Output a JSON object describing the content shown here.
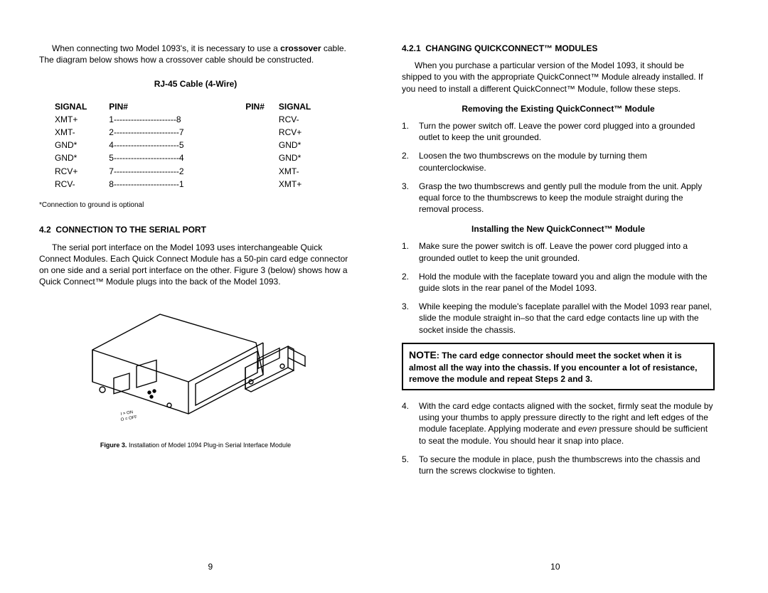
{
  "left": {
    "intro_p1a": "When connecting two Model 1093's, it is necessary to use a",
    "intro_p1b": "crossover",
    "intro_p1c": " cable.  The diagram below shows how a crossover cable should be constructed.",
    "table_title": "RJ-45 Cable (4-Wire)",
    "table": {
      "headers": [
        "SIGNAL",
        "PIN#",
        "PIN#",
        "SIGNAL"
      ],
      "rows": [
        [
          "XMT+",
          "1",
          "----------------------",
          "8",
          "RCV-"
        ],
        [
          "XMT-",
          "2",
          "-----------------------",
          "7",
          "RCV+"
        ],
        [
          "GND*",
          "4",
          "-----------------------",
          "5",
          "GND*"
        ],
        [
          "GND*",
          "5",
          "-----------------------",
          "4",
          "GND*"
        ],
        [
          "RCV+",
          "7",
          "-----------------------",
          "2",
          "XMT-"
        ],
        [
          "RCV-",
          "8",
          "-----------------------",
          "1",
          "XMT+"
        ]
      ]
    },
    "footnote": "*Connection to ground is optional",
    "h42_num": "4.2",
    "h42_title": "CONNECTION TO THE SERIAL PORT",
    "p42": "The serial port interface on the Model 1093 uses interchangeable Quick Connect Modules.  Each Quick Connect Module has a 50-pin card edge connector on one side and a serial port interface on the other.  Figure 3 (below) shows how a Quick Connect™ Module plugs into the back of the Model 1093.",
    "fig_caption_bold": "Figure 3.",
    "fig_caption_rest": "  Installation of Model 1094 Plug-in Serial Interface Module",
    "page_num": "9"
  },
  "right": {
    "h421_num": "4.2.1",
    "h421_title": "CHANGING QUICKCONNECT™ MODULES",
    "p421": "When you purchase a particular version of the Model 1093, it should be shipped to you with the appropriate QuickConnect™ Module already installed.  If you need to install a different QuickConnect™ Module, follow these steps.",
    "remove_title": "Removing the Existing QuickConnect™ Module",
    "remove_steps": [
      "Turn the power switch off.  Leave the power cord plugged into a grounded outlet to keep the unit grounded.",
      "Loosen the two thumbscrews on the module by turning them counterclockwise.",
      "Grasp the two thumbscrews and gently pull the module from the unit.  Apply equal force to the thumbscrews to keep the module straight during the removal process."
    ],
    "install_title": "Installing the New QuickConnect™ Module",
    "install_steps_1_3": [
      "Make sure the power switch is off.  Leave the power cord plugged into a grounded outlet to keep the unit grounded.",
      "Hold the module with the faceplate toward you and align the module with the guide slots in the rear panel of the Model 1093.",
      "While keeping the module's faceplate parallel with the Model 1093 rear panel, slide the module straight in–so that the card edge contacts line up with the socket inside the chassis."
    ],
    "note_label": "NOTE",
    "note_text": ":  The card edge connector should meet the socket when it is almost all the way into the chassis.  If you encounter a lot of resistance, remove the module and repeat Steps 2 and 3.",
    "step4_a": "With the card edge contacts aligned with the socket, firmly seat the module by using your thumbs to apply pressure directly to the right and left edges of the module faceplate.  Applying moderate and ",
    "step4_even": "even",
    "step4_b": " pressure should be sufficient to seat the module.  You should hear it snap into place.",
    "step5": "To secure the module in place, push the thumbscrews into the chassis and turn the screws clockwise to tighten.",
    "page_num": "10"
  }
}
